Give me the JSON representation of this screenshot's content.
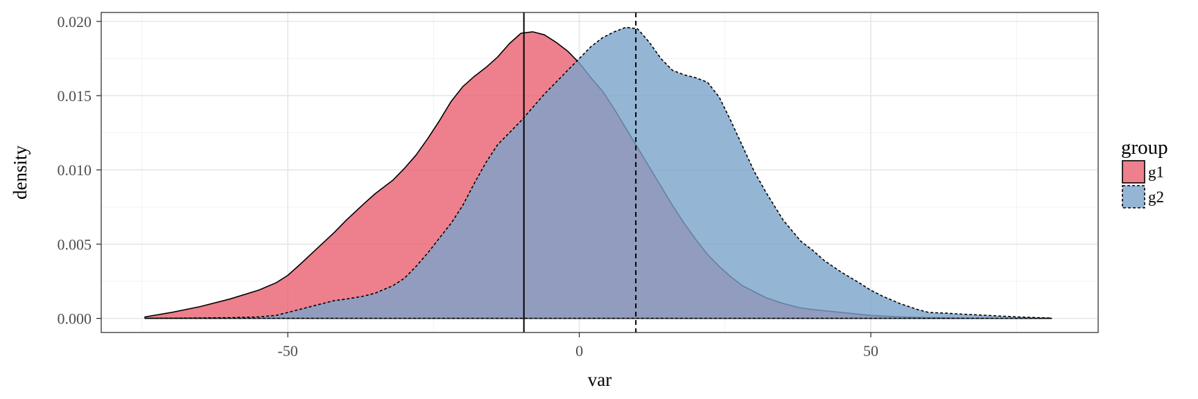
{
  "chart_data": {
    "type": "area",
    "title": "",
    "xlabel": "var",
    "ylabel": "density",
    "xlim": [
      -82,
      89
    ],
    "ylim": [
      -0.00095,
      0.0206
    ],
    "x_ticks": [
      -50,
      0,
      50
    ],
    "x_tick_labels": [
      "-50",
      "0",
      "50"
    ],
    "y_ticks": [
      0,
      0.005,
      0.01,
      0.015,
      0.02
    ],
    "y_tick_labels": [
      "0.000",
      "0.005",
      "0.010",
      "0.015",
      "0.020"
    ],
    "grid": true,
    "legend": {
      "title": "group",
      "position": "right"
    },
    "series": [
      {
        "name": "g1",
        "color": "#e8606f",
        "line_style": "solid",
        "mean": -9.5,
        "x": [
          -74.5,
          -70,
          -65,
          -60,
          -55,
          -52,
          -50,
          -48,
          -45,
          -42,
          -40,
          -37,
          -35,
          -32,
          -30,
          -28,
          -26,
          -24,
          -22,
          -20,
          -18,
          -16,
          -14,
          -12,
          -10,
          -8,
          -6,
          -4,
          -2,
          0,
          2,
          4,
          6,
          8,
          10,
          12,
          14,
          16,
          18,
          20,
          22,
          24,
          26,
          28,
          30,
          32,
          35,
          38,
          40,
          45,
          50,
          55,
          60,
          65,
          70,
          75,
          81
        ],
        "y": [
          0.0001,
          0.0004,
          0.0008,
          0.0013,
          0.0019,
          0.0024,
          0.0029,
          0.0036,
          0.0047,
          0.0058,
          0.0066,
          0.0077,
          0.0084,
          0.0093,
          0.0101,
          0.011,
          0.0121,
          0.0133,
          0.0146,
          0.0156,
          0.0163,
          0.0169,
          0.0176,
          0.0185,
          0.0192,
          0.0193,
          0.0191,
          0.0186,
          0.018,
          0.0172,
          0.0162,
          0.0153,
          0.0141,
          0.0128,
          0.0115,
          0.0102,
          0.0089,
          0.0076,
          0.0064,
          0.0053,
          0.0043,
          0.0035,
          0.0028,
          0.0022,
          0.0018,
          0.0014,
          0.001,
          0.0007,
          0.0006,
          0.0004,
          0.0002,
          0.0001,
          5e-05,
          2e-05,
          1e-05,
          5e-06,
          0.0
        ]
      },
      {
        "name": "g2",
        "color": "#7aa2cb",
        "line_style": "dashed",
        "mean": 9.7,
        "x": [
          -74.5,
          -70,
          -60,
          -55,
          -52,
          -50,
          -48,
          -45,
          -42,
          -40,
          -37,
          -35,
          -32,
          -30,
          -28,
          -26,
          -24,
          -22,
          -20,
          -18,
          -16,
          -14,
          -12,
          -10,
          -8,
          -6,
          -4,
          -2,
          0,
          2,
          4,
          6,
          8,
          10,
          12,
          14,
          16,
          18,
          20,
          22,
          24,
          26,
          28,
          30,
          32,
          35,
          38,
          40,
          42,
          45,
          48,
          50,
          52,
          55,
          58,
          60,
          63,
          65,
          70,
          75,
          81
        ],
        "y": [
          0.0,
          1e-05,
          5e-05,
          0.0001,
          0.0002,
          0.0004,
          0.0006,
          0.0009,
          0.0012,
          0.0013,
          0.0015,
          0.0017,
          0.0022,
          0.0027,
          0.0035,
          0.0044,
          0.0054,
          0.0064,
          0.0076,
          0.0091,
          0.0105,
          0.0117,
          0.0125,
          0.0133,
          0.0142,
          0.0151,
          0.0159,
          0.0167,
          0.0175,
          0.0183,
          0.0189,
          0.0193,
          0.0196,
          0.0195,
          0.0186,
          0.0175,
          0.0167,
          0.0164,
          0.0162,
          0.0159,
          0.0149,
          0.0133,
          0.0116,
          0.0099,
          0.0085,
          0.0066,
          0.0052,
          0.0046,
          0.0039,
          0.0031,
          0.0024,
          0.0019,
          0.0015,
          0.001,
          0.0006,
          0.0004,
          0.00035,
          0.0003,
          0.0002,
          0.0001,
          2e-05
        ]
      }
    ]
  }
}
